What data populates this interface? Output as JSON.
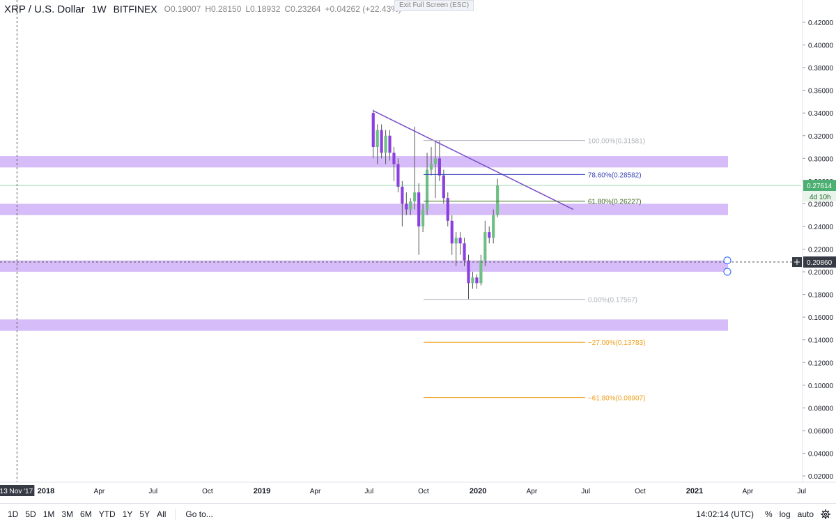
{
  "header": {
    "symbol": "XRP / U.S. Dollar",
    "interval": "1W",
    "exchange": "BITFINEX",
    "o": "O0.19007",
    "h": "H0.28150",
    "l": "L0.18932",
    "c": "C0.23264",
    "change": "+0.04262 (+22.43%)"
  },
  "exit_fullscreen": "Exit Full Screen (ESC)",
  "colors": {
    "up": "#6fbf85",
    "down": "#8c3fe0",
    "zone": "#cfb0f7",
    "trendline": "#7b4fc9",
    "fib_gray": "#b2b5be",
    "fib_786": "#3a46b8",
    "fib_618": "#3f6b1f",
    "fib_ext": "#f0a020",
    "last_price_bg": "#4caf72",
    "crosshair_label_bg": "#363a45"
  },
  "chart_data": {
    "type": "candlestick",
    "y_axis": {
      "min": 0.005,
      "max": 0.43,
      "ticks": [
        0.42,
        0.4,
        0.38,
        0.36,
        0.34,
        0.32,
        0.3,
        0.28,
        0.26,
        0.24,
        0.22,
        0.2,
        0.18,
        0.16,
        0.14,
        0.12,
        0.1,
        0.08,
        0.06,
        0.04,
        0.02
      ],
      "tick_labels": [
        "0.42000",
        "0.40000",
        "0.38000",
        "0.36000",
        "0.34000",
        "0.32000",
        "0.30000",
        "0.28000",
        "0.26000",
        "0.24000",
        "0.22000",
        "0.20000",
        "0.18000",
        "0.16000",
        "0.14000",
        "0.12000",
        "0.10000",
        "0.08000",
        "0.06000",
        "0.04000",
        "0.02000"
      ]
    },
    "x_axis": {
      "start_date": "2017-11-13",
      "end_date": "2021-05-01",
      "labels": [
        {
          "date": "2017-11-13",
          "text": "13 Nov '17",
          "highlight": true
        },
        {
          "date": "2018-01-01",
          "text": "2018"
        },
        {
          "date": "2018-04-01",
          "text": "Apr"
        },
        {
          "date": "2018-07-01",
          "text": "Jul"
        },
        {
          "date": "2018-10-01",
          "text": "Oct"
        },
        {
          "date": "2019-01-01",
          "text": "2019"
        },
        {
          "date": "2019-04-01",
          "text": "Apr"
        },
        {
          "date": "2019-07-01",
          "text": "Jul"
        },
        {
          "date": "2019-10-01",
          "text": "Oct"
        },
        {
          "date": "2020-01-01",
          "text": "2020"
        },
        {
          "date": "2020-04-01",
          "text": "Apr"
        },
        {
          "date": "2020-07-01",
          "text": "Jul"
        },
        {
          "date": "2020-10-01",
          "text": "Oct"
        },
        {
          "date": "2021-01-01",
          "text": "2021"
        },
        {
          "date": "2021-04-01",
          "text": "Apr"
        },
        {
          "date": "2021-07-01",
          "text": "Jul"
        }
      ]
    },
    "candles_recent": [
      {
        "date": "2019-07-08",
        "o": 0.34,
        "h": 0.343,
        "l": 0.3,
        "c": 0.31
      },
      {
        "date": "2019-07-15",
        "o": 0.31,
        "h": 0.33,
        "l": 0.295,
        "c": 0.325
      },
      {
        "date": "2019-07-22",
        "o": 0.325,
        "h": 0.33,
        "l": 0.3,
        "c": 0.305
      },
      {
        "date": "2019-07-29",
        "o": 0.305,
        "h": 0.325,
        "l": 0.295,
        "c": 0.32
      },
      {
        "date": "2019-08-05",
        "o": 0.32,
        "h": 0.325,
        "l": 0.298,
        "c": 0.305
      },
      {
        "date": "2019-08-12",
        "o": 0.305,
        "h": 0.31,
        "l": 0.28,
        "c": 0.295
      },
      {
        "date": "2019-08-19",
        "o": 0.295,
        "h": 0.3,
        "l": 0.27,
        "c": 0.275
      },
      {
        "date": "2019-08-26",
        "o": 0.275,
        "h": 0.28,
        "l": 0.24,
        "c": 0.26
      },
      {
        "date": "2019-09-02",
        "o": 0.26,
        "h": 0.27,
        "l": 0.25,
        "c": 0.255
      },
      {
        "date": "2019-09-09",
        "o": 0.255,
        "h": 0.265,
        "l": 0.25,
        "c": 0.262
      },
      {
        "date": "2019-09-16",
        "o": 0.262,
        "h": 0.328,
        "l": 0.255,
        "c": 0.27
      },
      {
        "date": "2019-09-23",
        "o": 0.27,
        "h": 0.278,
        "l": 0.215,
        "c": 0.24
      },
      {
        "date": "2019-09-30",
        "o": 0.24,
        "h": 0.26,
        "l": 0.235,
        "c": 0.255
      },
      {
        "date": "2019-10-07",
        "o": 0.255,
        "h": 0.305,
        "l": 0.25,
        "c": 0.29
      },
      {
        "date": "2019-10-14",
        "o": 0.29,
        "h": 0.31,
        "l": 0.285,
        "c": 0.295
      },
      {
        "date": "2019-10-21",
        "o": 0.295,
        "h": 0.315,
        "l": 0.265,
        "c": 0.3
      },
      {
        "date": "2019-10-28",
        "o": 0.3,
        "h": 0.316,
        "l": 0.28,
        "c": 0.285
      },
      {
        "date": "2019-11-04",
        "o": 0.285,
        "h": 0.29,
        "l": 0.26,
        "c": 0.265
      },
      {
        "date": "2019-11-11",
        "o": 0.265,
        "h": 0.27,
        "l": 0.24,
        "c": 0.245
      },
      {
        "date": "2019-11-18",
        "o": 0.245,
        "h": 0.25,
        "l": 0.215,
        "c": 0.225
      },
      {
        "date": "2019-11-25",
        "o": 0.225,
        "h": 0.235,
        "l": 0.205,
        "c": 0.23
      },
      {
        "date": "2019-12-02",
        "o": 0.23,
        "h": 0.235,
        "l": 0.215,
        "c": 0.225
      },
      {
        "date": "2019-12-09",
        "o": 0.225,
        "h": 0.23,
        "l": 0.205,
        "c": 0.21
      },
      {
        "date": "2019-12-16",
        "o": 0.21,
        "h": 0.215,
        "l": 0.176,
        "c": 0.19
      },
      {
        "date": "2019-12-23",
        "o": 0.19,
        "h": 0.2,
        "l": 0.185,
        "c": 0.195
      },
      {
        "date": "2019-12-30",
        "o": 0.195,
        "h": 0.198,
        "l": 0.185,
        "c": 0.19
      },
      {
        "date": "2020-01-06",
        "o": 0.19,
        "h": 0.215,
        "l": 0.188,
        "c": 0.21
      },
      {
        "date": "2020-01-13",
        "o": 0.21,
        "h": 0.245,
        "l": 0.205,
        "c": 0.235
      },
      {
        "date": "2020-01-20",
        "o": 0.235,
        "h": 0.24,
        "l": 0.225,
        "c": 0.23
      },
      {
        "date": "2020-01-27",
        "o": 0.23,
        "h": 0.255,
        "l": 0.225,
        "c": 0.25
      },
      {
        "date": "2020-02-03",
        "o": 0.25,
        "h": 0.282,
        "l": 0.248,
        "c": 0.276
      }
    ],
    "support_zones": [
      {
        "from": 0.292,
        "to": 0.302
      },
      {
        "from": 0.25,
        "to": 0.26
      },
      {
        "from": 0.2,
        "to": 0.21
      },
      {
        "from": 0.148,
        "to": 0.158
      }
    ],
    "trendline": {
      "from": {
        "date": "2019-07-08",
        "price": 0.342
      },
      "to": {
        "date": "2020-06-10",
        "price": 0.255
      }
    },
    "fib_levels": [
      {
        "level": 1.0,
        "price": 0.31581,
        "label": "100.00%(0.31581)",
        "color_key": "fib_gray"
      },
      {
        "level": 0.786,
        "price": 0.28582,
        "label": "78.60%(0.28582)",
        "color_key": "fib_786"
      },
      {
        "level": 0.618,
        "price": 0.26227,
        "label": "61.80%(0.26227)",
        "color_key": "fib_618"
      },
      {
        "level": 0.0,
        "price": 0.17567,
        "label": "0.00%(0.17567)",
        "color_key": "fib_gray"
      },
      {
        "level": -0.27,
        "price": 0.13783,
        "label": "−27.00%(0.13783)",
        "color_key": "fib_ext"
      },
      {
        "level": -0.618,
        "price": 0.08907,
        "label": "−61.80%(0.08907)",
        "color_key": "fib_ext"
      }
    ],
    "fib_start_date": "2019-10-01",
    "fib_end_date": "2020-06-30",
    "last_price": {
      "value": 0.27614,
      "label": "0.27614",
      "countdown": "4d 10h"
    },
    "crosshair_price": {
      "value": 0.2086,
      "label": "0.20860"
    }
  },
  "bottom_bar": {
    "ranges": [
      "1D",
      "5D",
      "1M",
      "3M",
      "6M",
      "YTD",
      "1Y",
      "5Y",
      "All"
    ],
    "goto": "Go to...",
    "clock": "14:02:14 (UTC)",
    "percent": "%",
    "log": "log",
    "auto": "auto"
  }
}
